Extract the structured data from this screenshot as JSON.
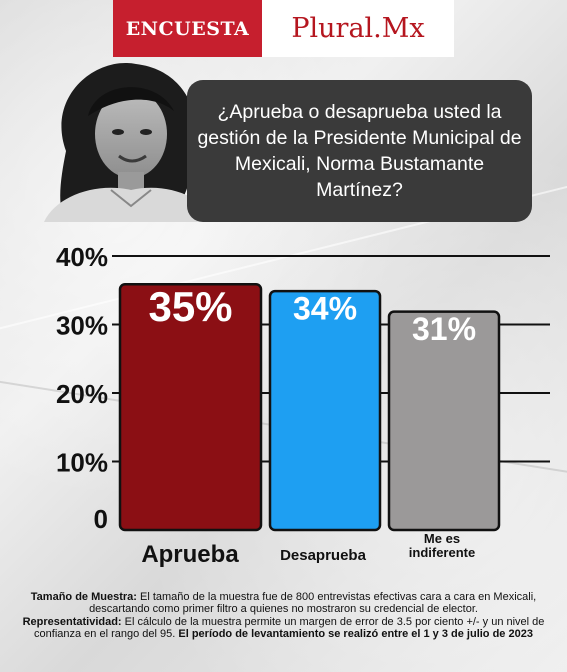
{
  "brand": {
    "left_label": "ENCUESTA",
    "right_label": "Plural.Mx",
    "left_color": "#c61f2e",
    "right_color": "#b5161f"
  },
  "question": "¿Aprueba o desaprueba usted la gestión de la Presidente Municipal de Mexicali, Norma Bustamante Martínez?",
  "chart_data": {
    "type": "bar",
    "categories": [
      "Aprueba",
      "Desaprueba",
      "Me es indiferente"
    ],
    "values": [
      35,
      34,
      31
    ],
    "value_labels": [
      "35%",
      "34%",
      "31%"
    ],
    "colors": [
      "#8b0f14",
      "#1e9ff2",
      "#9b9999"
    ],
    "yticks": [
      {
        "value": 40,
        "label": "40%"
      },
      {
        "value": 30,
        "label": "30%"
      },
      {
        "value": 20,
        "label": "20%"
      },
      {
        "value": 10,
        "label": "10%"
      },
      {
        "value": 0,
        "label": "0"
      }
    ],
    "ylim": [
      0,
      40
    ],
    "grid": true,
    "title": "",
    "xlabel": "",
    "ylabel": ""
  },
  "footer": {
    "sample_label": "Tamaño de Muestra:",
    "sample_text": "El tamaño de la muestra fue de 800 entrevistas efectivas cara a cara en Mexicali, descartando como primer filtro a quienes no mostraron su credencial de elector.",
    "rep_label": "Representatividad:",
    "rep_text": "El cálculo de la muestra permite un margen de error de 3.5 por ciento +/- y un nivel de confianza en el rango del 95.",
    "period_text": "El período de levantamiento se realizó entre el 1 y 3 de julio de 2023"
  }
}
